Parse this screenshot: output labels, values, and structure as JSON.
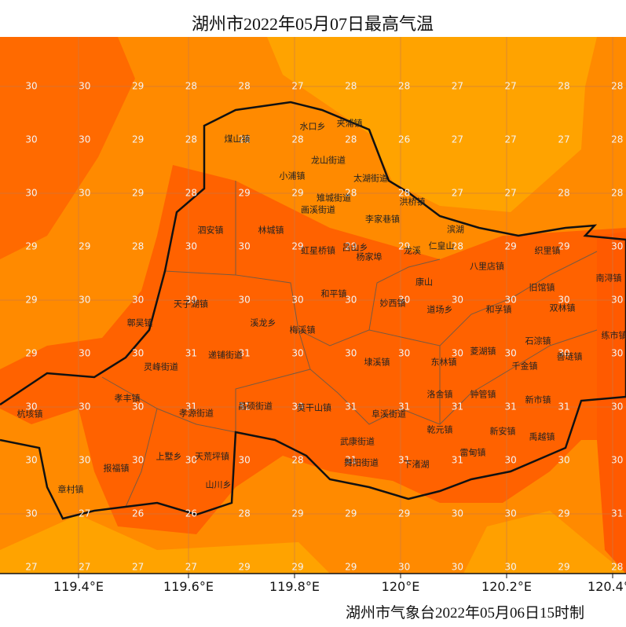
{
  "title": "湖州市2022年05月07日最高气温",
  "footer": "湖州市气象台2022年05月06日15时制",
  "longitude_labels": [
    "119.4°E",
    "119.6°E",
    "119.8°E",
    "120°E",
    "120.2°E",
    "120.4°E"
  ],
  "grid": {
    "rows": [
      [
        30,
        30,
        29,
        28,
        28,
        27,
        28,
        28,
        27,
        27,
        28,
        28
      ],
      [
        30,
        30,
        29,
        28,
        28,
        28,
        28,
        26,
        27,
        27,
        27,
        28
      ],
      [
        30,
        30,
        29,
        28,
        29,
        29,
        28,
        28,
        27,
        27,
        28,
        28
      ],
      [
        29,
        29,
        28,
        30,
        30,
        29,
        29,
        29,
        28,
        29,
        29,
        30
      ],
      [
        29,
        30,
        30,
        30,
        30,
        30,
        30,
        30,
        30,
        30,
        30,
        30
      ],
      [
        29,
        30,
        30,
        31,
        31,
        30,
        30,
        30,
        30,
        30,
        30,
        30
      ],
      [
        30,
        30,
        30,
        31,
        31,
        30,
        31,
        31,
        31,
        31,
        31,
        30
      ],
      [
        30,
        30,
        30,
        30,
        30,
        28,
        31,
        31,
        31,
        30,
        30,
        30
      ],
      [
        30,
        27,
        26,
        26,
        28,
        29,
        29,
        29,
        30,
        30,
        29,
        31
      ],
      [
        27,
        27,
        27,
        27,
        29,
        29,
        29,
        30,
        30,
        30,
        29,
        28
      ]
    ]
  },
  "towns": [
    "夹浦镇",
    "水口乡",
    "煤山镇",
    "龙山街道",
    "太湖街道",
    "小浦镇",
    "雉城街道",
    "洪桥镇",
    "画溪街道",
    "李家巷镇",
    "泗安镇",
    "林城镇",
    "滨湖",
    "虹星桥镇",
    "吕山乡",
    "杨家埠",
    "龙溪",
    "仁皇山",
    "织里镇",
    "八里店镇",
    "南浔镇",
    "康山",
    "天子湖镇",
    "和平镇",
    "妙西镇",
    "旧馆镇",
    "双林镇",
    "道场乡",
    "和孚镇",
    "鄣吴镇",
    "溪龙乡",
    "梅溪镇",
    "练市镇",
    "石淙镇",
    "菱湖镇",
    "递铺街道",
    "善琏镇",
    "千金镇",
    "灵峰街道",
    "埭溪镇",
    "东林镇",
    "洛舍镇",
    "钟管镇",
    "孝丰镇",
    "杭垓镇",
    "昌硕街道",
    "莫干山镇",
    "阜溪街道",
    "新市镇",
    "孝源街道",
    "乾元镇",
    "新安镇",
    "武康街道",
    "禹越镇",
    "报福镇",
    "上墅乡",
    "天荒坪镇",
    "舞阳街道",
    "雷甸镇",
    "下渚湖",
    "章村镇",
    "山川乡"
  ]
}
